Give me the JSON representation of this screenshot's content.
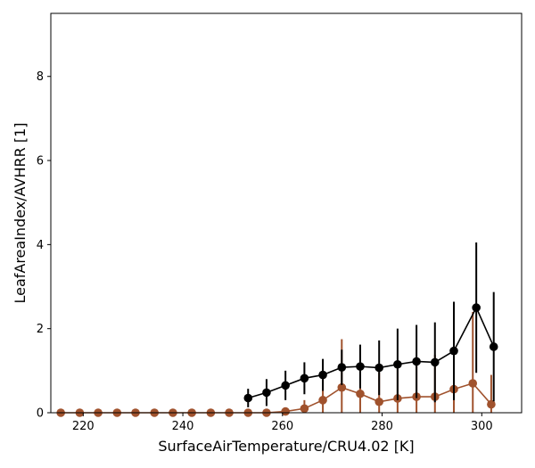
{
  "chart_data": {
    "type": "line",
    "xlabel": "SurfaceAirTemperature/CRU4.02 [K]",
    "ylabel": "LeafAreaIndex/AVHRR [1]",
    "xlim": [
      213.5,
      308
    ],
    "ylim": [
      0,
      9.5
    ],
    "xticks": [
      220,
      240,
      260,
      280,
      300
    ],
    "yticks": [
      0,
      2,
      4,
      6,
      8
    ],
    "grid": false,
    "series": [
      {
        "color": "#a0522d",
        "x": [
          215.5,
          219.3,
          223.0,
          226.8,
          230.5,
          234.3,
          238.0,
          241.8,
          245.6,
          249.3,
          253.1,
          256.8,
          260.6,
          264.4,
          268.1,
          271.9,
          275.6,
          279.4,
          283.1,
          286.9,
          290.6,
          294.4,
          298.2,
          301.9
        ],
        "y": [
          0,
          0,
          0,
          0,
          0,
          0,
          0,
          0,
          0,
          0,
          0,
          0,
          0.03,
          0.1,
          0.3,
          0.6,
          0.45,
          0.26,
          0.34,
          0.38,
          0.38,
          0.56,
          0.7,
          0.2
        ],
        "err": [
          0,
          0,
          0,
          0,
          0,
          0,
          0,
          0,
          0,
          0,
          0,
          0,
          0.05,
          0.2,
          0.5,
          1.15,
          1.08,
          0.7,
          0.72,
          0.85,
          1.0,
          1.4,
          1.7,
          0.7
        ]
      },
      {
        "color": "#000000",
        "x": [
          253.1,
          256.8,
          260.6,
          264.4,
          268.1,
          271.9,
          275.6,
          279.4,
          283.1,
          286.9,
          290.6,
          294.4,
          298.9,
          302.4
        ],
        "y": [
          0.35,
          0.48,
          0.65,
          0.82,
          0.9,
          1.08,
          1.1,
          1.07,
          1.15,
          1.22,
          1.2,
          1.47,
          2.5,
          1.57
        ],
        "err": [
          0.22,
          0.32,
          0.35,
          0.38,
          0.38,
          0.42,
          0.52,
          0.65,
          0.85,
          0.87,
          0.95,
          1.17,
          1.55,
          1.3
        ]
      }
    ]
  }
}
